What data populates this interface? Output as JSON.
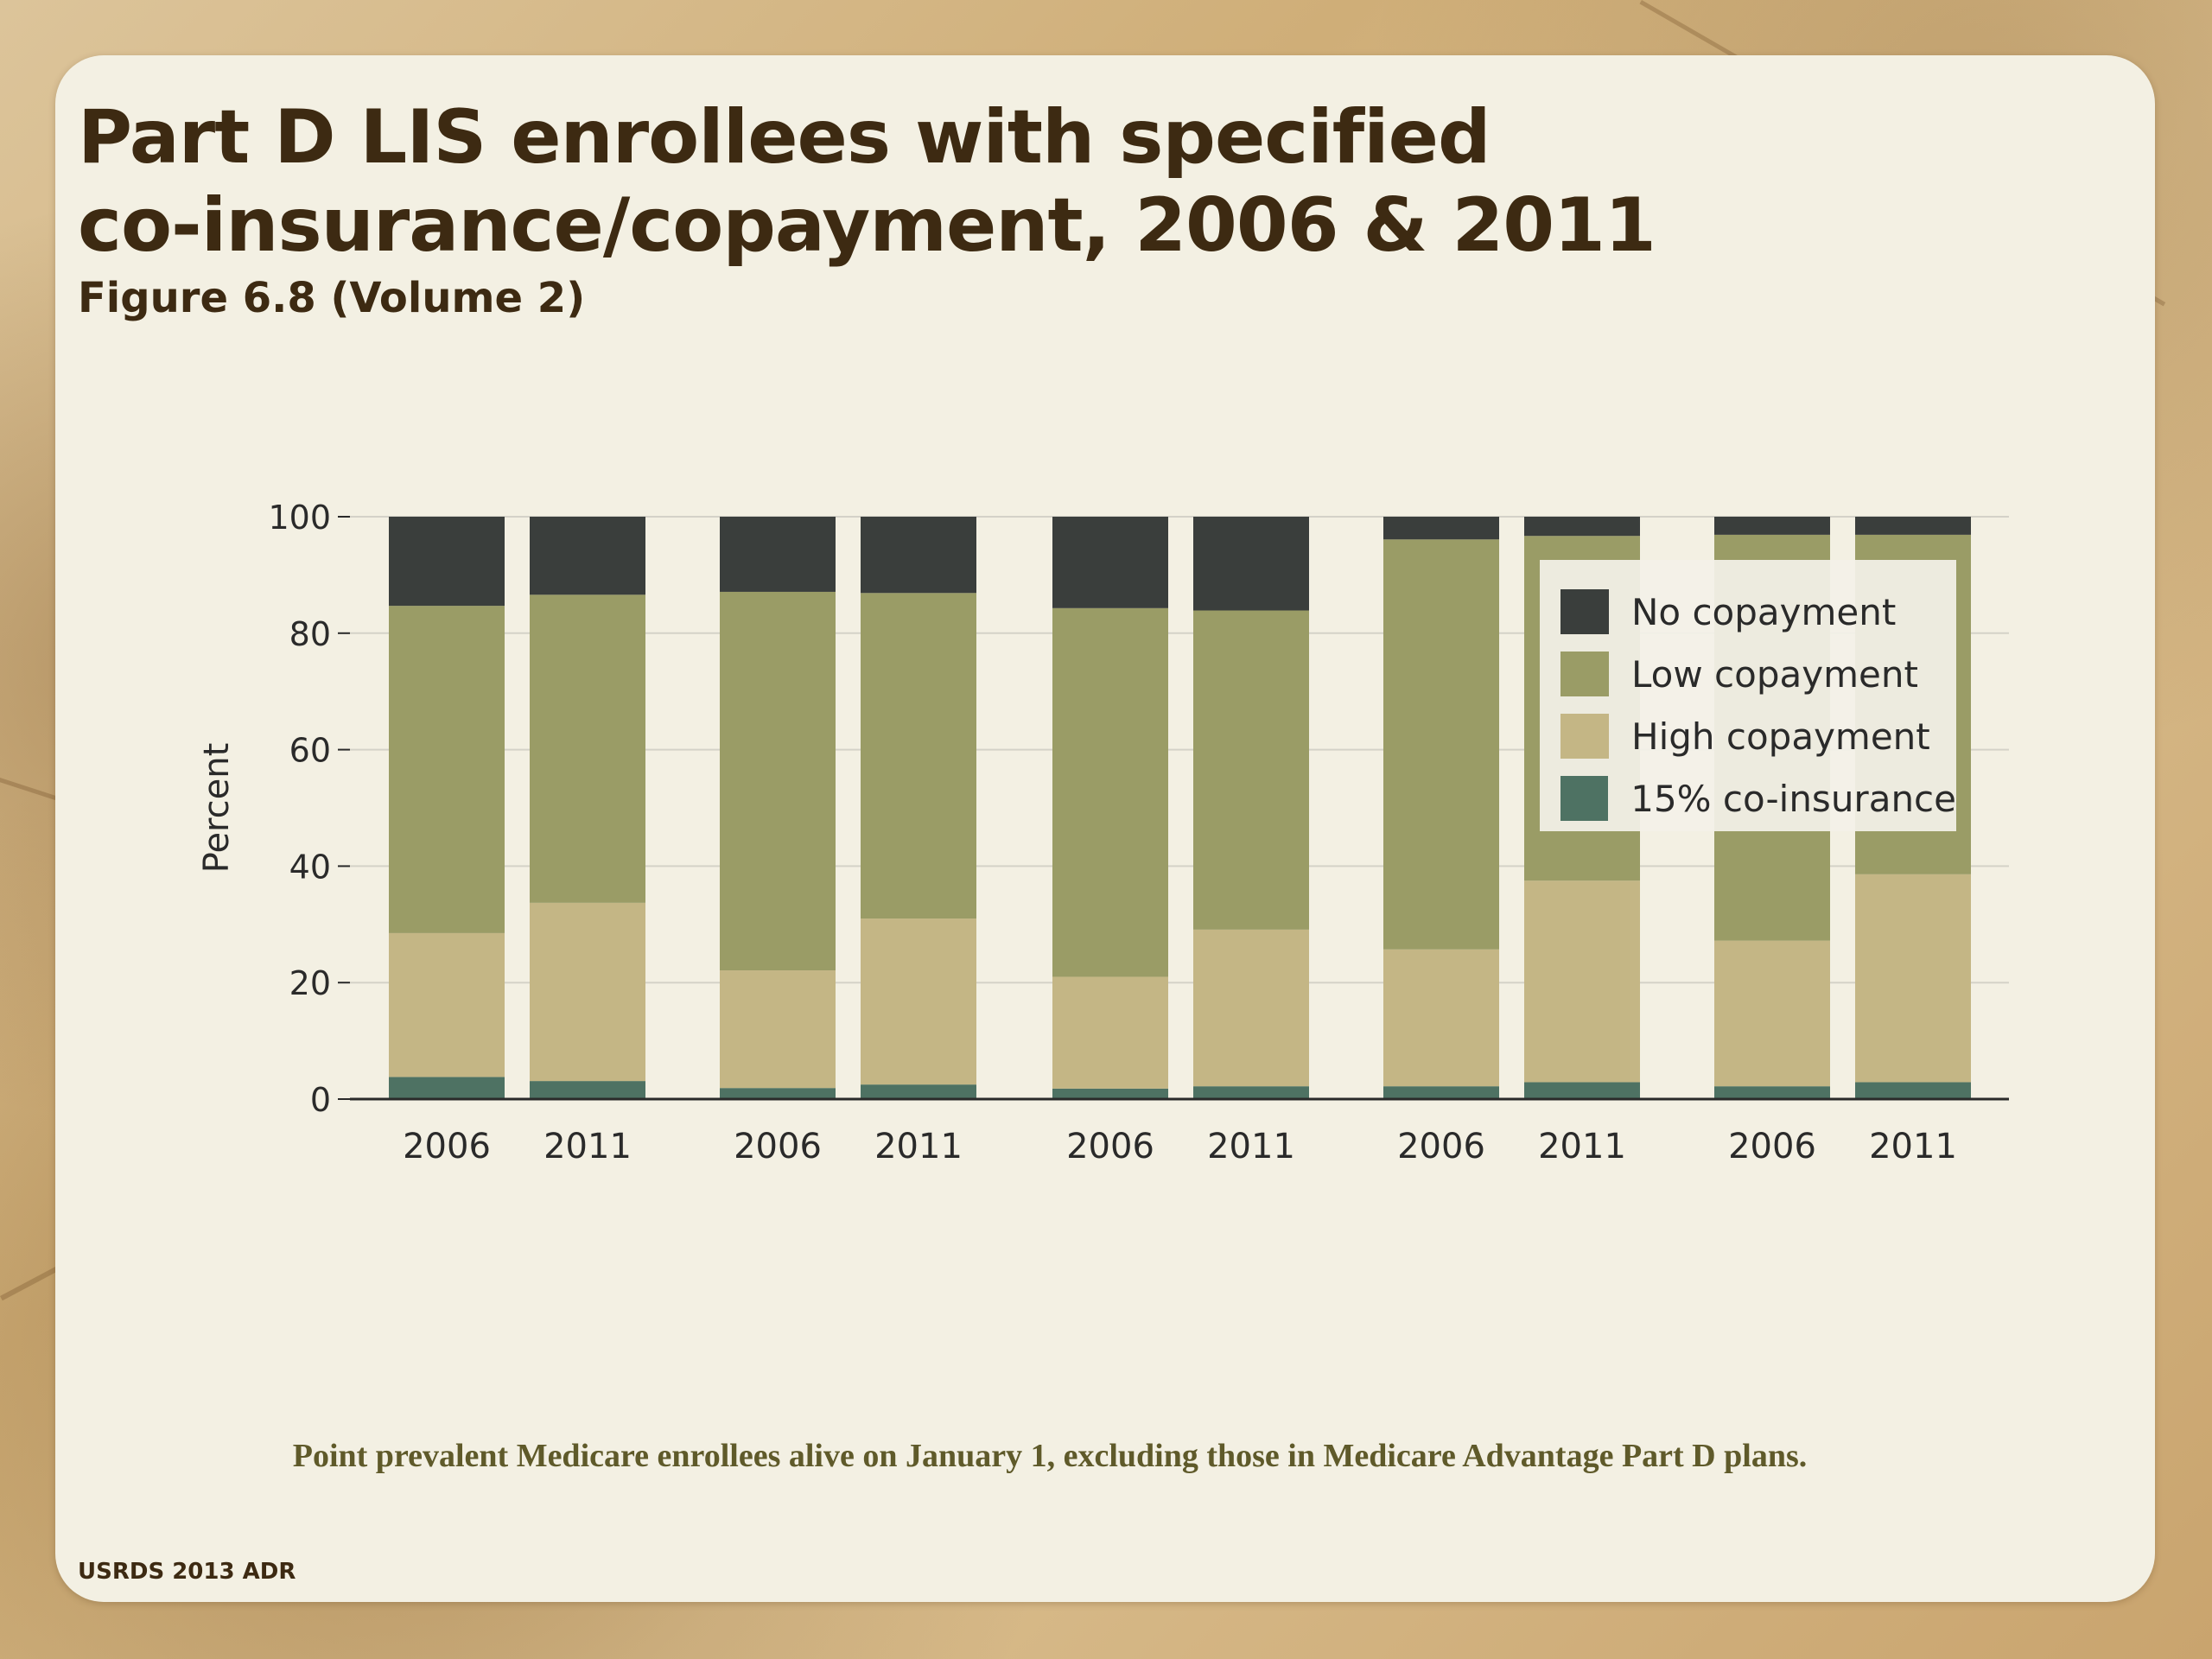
{
  "slide": {
    "title_line1": "Part D LIS enrollees with specified",
    "title_line2": "co-insurance/copayment, 2006 & 2011",
    "subtitle": "Figure 6.8 (Volume 2)",
    "footnote": "Point prevalent Medicare enrollees alive on January 1, excluding those in Medicare Advantage Part D plans.",
    "source": "USRDS 2013 ADR"
  },
  "colors": {
    "no_copayment": "#3a3e3c",
    "low_copayment": "#9a9c66",
    "high_copayment": "#c4b685",
    "coinsurance": "#4e7263",
    "axis": "#2a2a2a",
    "grid": "#d4d2c8"
  },
  "chart_data": {
    "type": "bar",
    "stacked": true,
    "categories": [
      "2006",
      "2011",
      "2006",
      "2011",
      "2006",
      "2011",
      "2006",
      "2011",
      "2006",
      "2011"
    ],
    "ylabel": "Percent",
    "ylim": [
      0,
      100
    ],
    "yticks": [
      0,
      20,
      40,
      60,
      80,
      100
    ],
    "grid": true,
    "legend_position": "top-right",
    "series": [
      {
        "name": "15% co-insurance",
        "color": "#4e7263",
        "values": [
          3.8,
          3.1,
          1.9,
          2.5,
          1.8,
          2.2,
          2.2,
          2.9,
          2.2,
          2.9
        ]
      },
      {
        "name": "High copayment",
        "color": "#c4b685",
        "values": [
          24.7,
          30.6,
          20.2,
          28.5,
          19.2,
          26.9,
          23.5,
          34.6,
          25.0,
          35.7
        ]
      },
      {
        "name": "Low copayment",
        "color": "#9a9c66",
        "values": [
          56.2,
          52.9,
          65.0,
          55.9,
          63.3,
          54.8,
          70.4,
          59.2,
          69.7,
          58.3
        ]
      },
      {
        "name": "No copayment",
        "color": "#3a3e3c",
        "values": [
          15.3,
          13.4,
          12.9,
          13.1,
          15.7,
          16.1,
          3.9,
          3.3,
          3.1,
          3.1
        ]
      }
    ]
  }
}
